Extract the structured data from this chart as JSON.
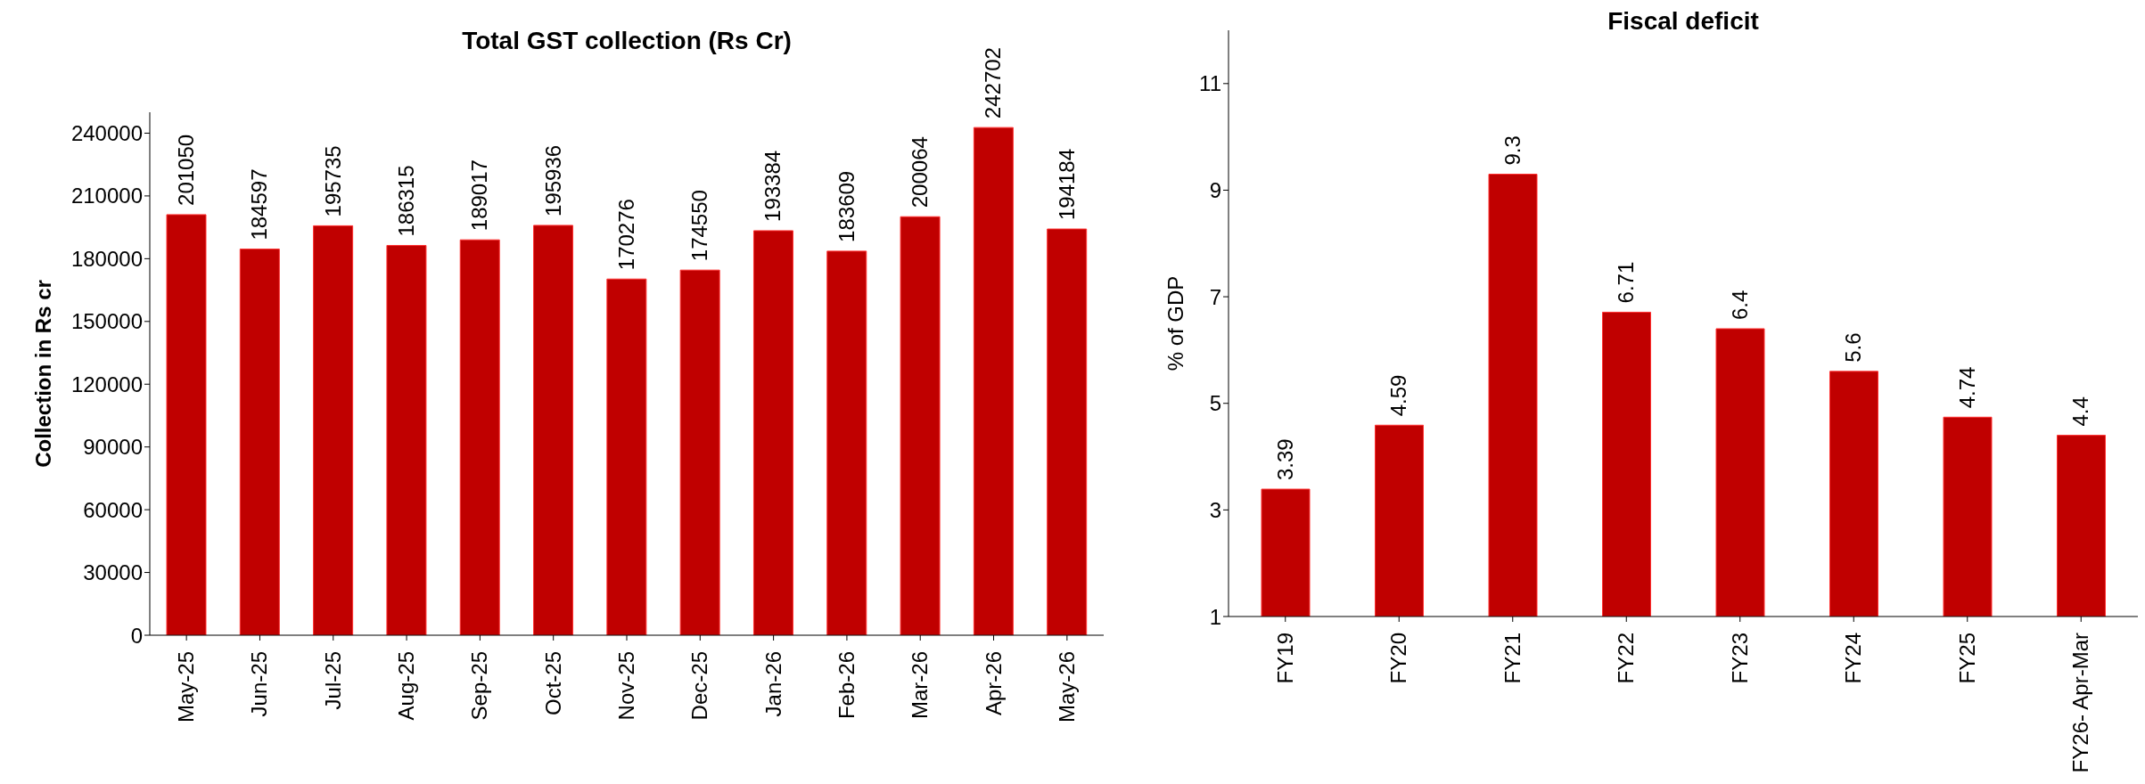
{
  "chart_data": [
    {
      "type": "bar",
      "title": "Total GST collection (Rs Cr)",
      "ylabel": "Collection in Rs cr",
      "categories": [
        "May-25",
        "Jun-25",
        "Jul-25",
        "Aug-25",
        "Sep-25",
        "Oct-25",
        "Nov-25",
        "Dec-25",
        "Jan-26",
        "Feb-26",
        "Mar-26",
        "Apr-26",
        "May-26"
      ],
      "values": [
        201050,
        184597,
        195735,
        186315,
        189017,
        195936,
        170276,
        174550,
        193384,
        183609,
        200064,
        242702,
        194184
      ],
      "color": "#c00000",
      "ylim": [
        0,
        250000
      ],
      "yticks": [
        0,
        30000,
        60000,
        90000,
        120000,
        150000,
        180000,
        210000,
        240000
      ],
      "grid": false,
      "legend": false,
      "data_labels": true
    },
    {
      "type": "bar",
      "title": "Fiscal deficit",
      "ylabel": "% of GDP",
      "categories": [
        "FY19",
        "FY20",
        "FY21",
        "FY22",
        "FY23",
        "FY24",
        "FY25",
        "FY26- Apr-Mar"
      ],
      "values": [
        3.39,
        4.59,
        9.3,
        6.71,
        6.4,
        5.6,
        4.74,
        4.4
      ],
      "color": "#c00000",
      "ylim": [
        1,
        12
      ],
      "yticks": [
        1,
        3,
        5,
        7,
        9,
        11
      ],
      "grid": false,
      "legend": false,
      "data_labels": true
    }
  ]
}
